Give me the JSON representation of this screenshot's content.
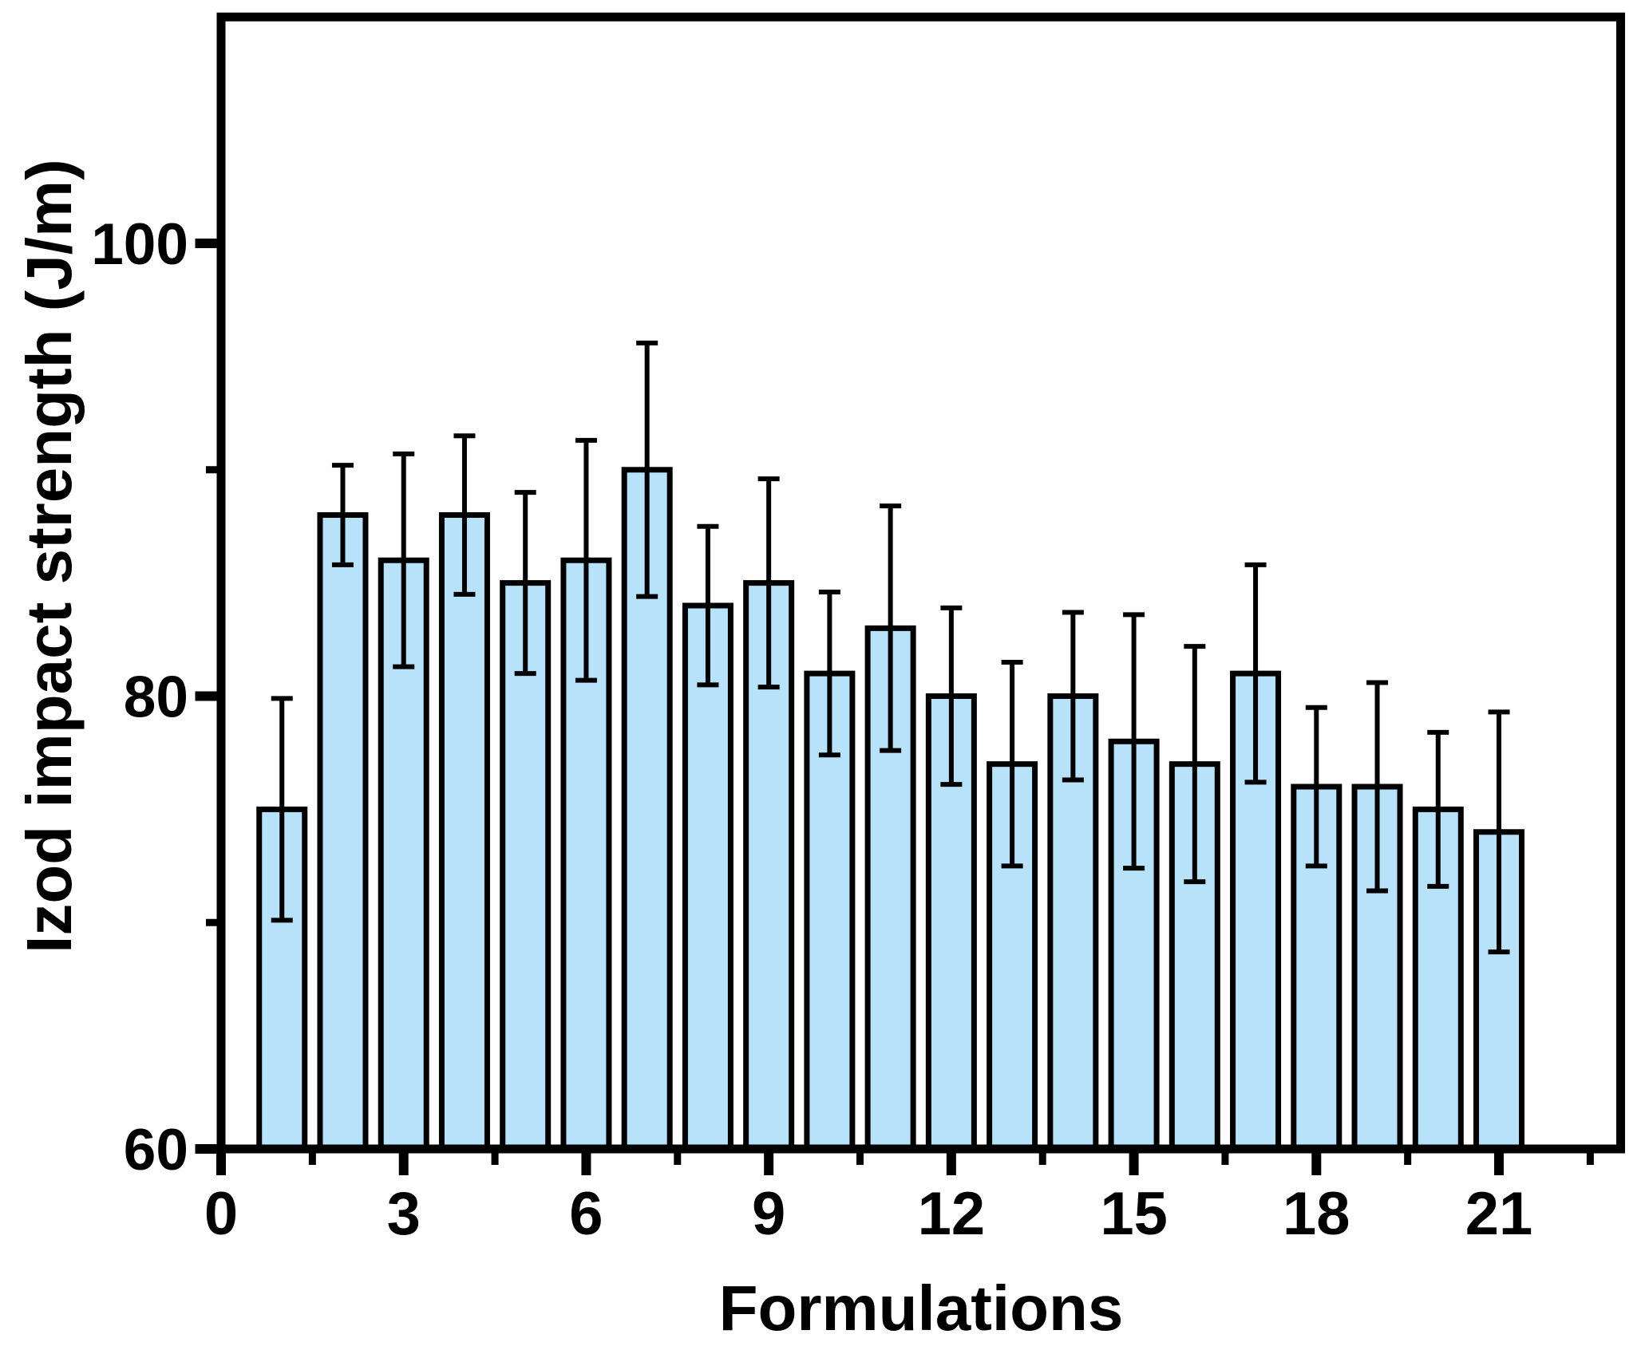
{
  "chart_data": {
    "type": "bar",
    "title": "",
    "xlabel": "Formulations",
    "ylabel": "Izod impact strength (J/m)",
    "x": [
      1,
      2,
      3,
      4,
      5,
      6,
      7,
      8,
      9,
      10,
      11,
      12,
      13,
      14,
      15,
      16,
      17,
      18,
      19,
      20,
      21
    ],
    "values": [
      75,
      88,
      86,
      88,
      85,
      86,
      90,
      84,
      85,
      81,
      83,
      80,
      77,
      80,
      78,
      77,
      81,
      76,
      76,
      75,
      74
    ],
    "errors": [
      4.9,
      2.2,
      4.7,
      3.5,
      4.0,
      5.3,
      5.6,
      3.5,
      4.6,
      3.6,
      5.4,
      3.9,
      4.5,
      3.7,
      5.6,
      5.2,
      4.8,
      3.5,
      4.6,
      3.4,
      5.3
    ],
    "xlim": [
      0,
      23
    ],
    "ylim": [
      60,
      110
    ],
    "xticks": [
      0,
      3,
      6,
      9,
      12,
      15,
      18,
      21
    ],
    "xminorticks": [
      1.5,
      4.5,
      7.5,
      10.5,
      13.5,
      16.5,
      19.5,
      22.5
    ],
    "yticks": [
      60,
      80,
      100
    ],
    "yminorticks": [
      70,
      90
    ],
    "grid": false,
    "legend": null,
    "bar_fill": "#B8E2FA",
    "bar_stroke": "#000000",
    "frame_color": "#000000",
    "background": "#FFFFFF"
  }
}
